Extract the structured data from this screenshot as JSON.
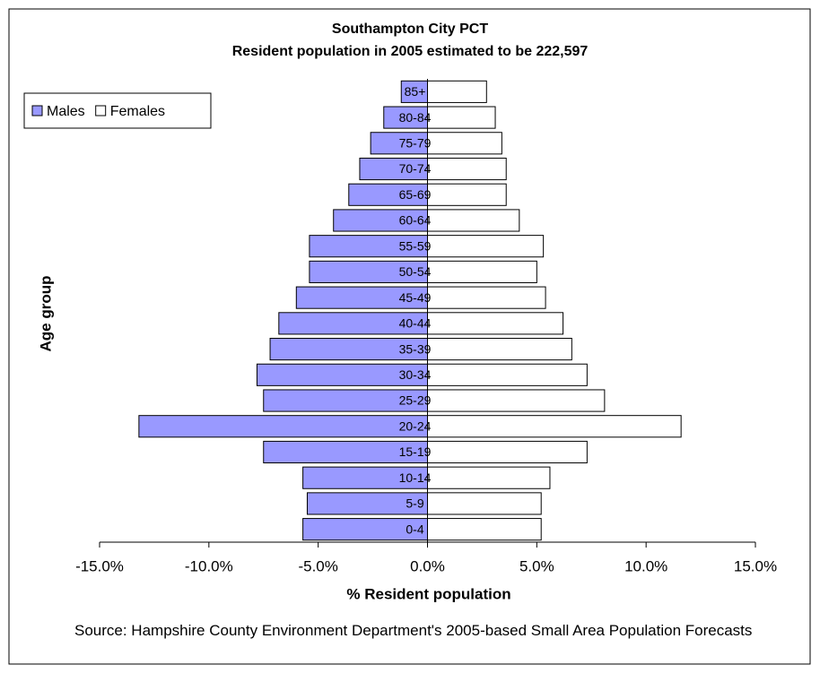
{
  "chart_data": {
    "type": "pyramid",
    "title": "Southampton City PCT",
    "subtitle": "Resident population in 2005 estimated to be 222,597",
    "x_label": "% Resident population",
    "y_label": "Age group",
    "source": "Source: Hampshire County Environment Department's 2005-based Small Area Population Forecasts",
    "categories": [
      "0-4",
      "5-9",
      "10-14",
      "15-19",
      "20-24",
      "25-29",
      "30-34",
      "35-39",
      "40-44",
      "45-49",
      "50-54",
      "55-59",
      "60-64",
      "65-69",
      "70-74",
      "75-79",
      "80-84",
      "85+"
    ],
    "series": [
      {
        "name": "Males",
        "color": "#9999ff",
        "values": [
          -5.7,
          -5.5,
          -5.7,
          -7.5,
          -13.2,
          -7.5,
          -7.8,
          -7.2,
          -6.8,
          -6.0,
          -5.4,
          -5.4,
          -4.3,
          -3.6,
          -3.1,
          -2.6,
          -2.0,
          -1.2
        ]
      },
      {
        "name": "Females",
        "color": "#ffffff",
        "values": [
          5.2,
          5.2,
          5.6,
          7.3,
          11.6,
          8.1,
          7.3,
          6.6,
          6.2,
          5.4,
          5.0,
          5.3,
          4.2,
          3.6,
          3.6,
          3.4,
          3.1,
          2.7
        ]
      }
    ],
    "xlim": [
      -15,
      15
    ],
    "xticks": [
      {
        "value": -15,
        "label": "-15.0%"
      },
      {
        "value": -10,
        "label": "-10.0%"
      },
      {
        "value": -5,
        "label": "-5.0%"
      },
      {
        "value": 0,
        "label": "0.0%"
      },
      {
        "value": 5,
        "label": "5.0%"
      },
      {
        "value": 10,
        "label": "10.0%"
      },
      {
        "value": 15,
        "label": "15.0%"
      }
    ],
    "legend": "top-left",
    "grid": false
  }
}
